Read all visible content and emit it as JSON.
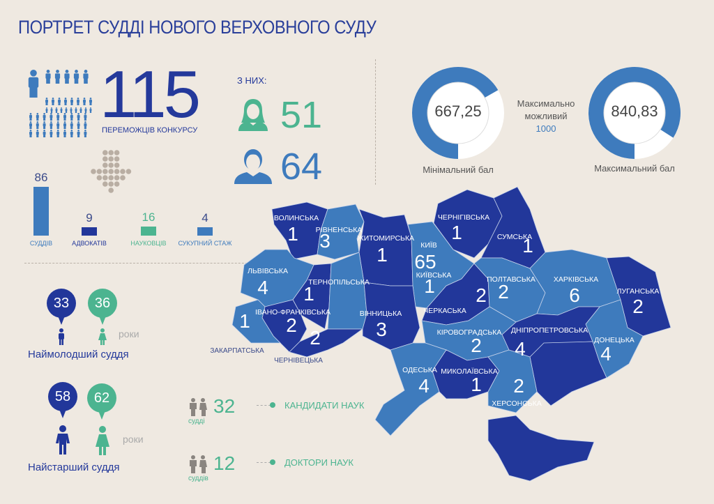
{
  "title": "ПОРТРЕТ СУДДІ НОВОГО ВЕРХОВНОГО СУДУ",
  "colors": {
    "dark_blue": "#22379a",
    "mid_blue": "#3e7bbd",
    "green": "#4cb490",
    "grey": "#b3aaa1",
    "background": "#efe9e1"
  },
  "winners": {
    "count": "115",
    "label": "ПЕРЕМОЖЦІВ КОНКУРСУ",
    "icon": "people-grid-icon"
  },
  "gender": {
    "heading": "З НИХ:",
    "women": {
      "count": "51",
      "icon": "woman-avatar-icon"
    },
    "men": {
      "count": "64",
      "icon": "man-avatar-icon"
    }
  },
  "background_bars": [
    {
      "value": 86,
      "value_label": "86",
      "label": "СУДДІВ",
      "color": "#3e7bbd"
    },
    {
      "value": 9,
      "value_label": "9",
      "label": "АДВОКАТІВ",
      "color": "#22379a"
    },
    {
      "value": 16,
      "value_label": "16",
      "label": "НАУКОВЦІВ",
      "color": "#4cb490"
    },
    {
      "value": 4,
      "value_label": "4",
      "label": "СУКУПНИЙ СТАЖ",
      "color": "#3e7bbd"
    }
  ],
  "scores": {
    "max_possible_label": "Максимально можливий",
    "max_possible_value": "1000",
    "min": {
      "value": 667.25,
      "text": "667,25",
      "label": "Мінімальний бал"
    },
    "max": {
      "value": 840.83,
      "text": "840,83",
      "label": "Максимальний бал"
    }
  },
  "youngest": {
    "male_age": "33",
    "female_age": "36",
    "unit": "роки",
    "label": "Наймолодший суддя"
  },
  "oldest": {
    "male_age": "58",
    "female_age": "62",
    "unit": "роки",
    "label": "Найстарший суддя"
  },
  "degrees": [
    {
      "count": "32",
      "unit": "судді",
      "label": "КАНДИДАТИ НАУК"
    },
    {
      "count": "12",
      "unit": "суддів",
      "label": "ДОКТОРИ НАУК"
    }
  ],
  "map_regions": [
    {
      "name": "ВОЛИНСЬКА",
      "count": "1",
      "shade": "dark"
    },
    {
      "name": "РІВНЕНСЬКА",
      "count": "3",
      "shade": "light"
    },
    {
      "name": "ЖИТОМИРСЬКА",
      "count": "1",
      "shade": "dark"
    },
    {
      "name": "КИЇВ",
      "count": "65",
      "shade": "light"
    },
    {
      "name": "КИЇВСЬКА",
      "count": "1",
      "shade": "light"
    },
    {
      "name": "ЧЕРНІГІВСЬКА",
      "count": "1",
      "shade": "dark"
    },
    {
      "name": "СУМСЬКА",
      "count": "1",
      "shade": "dark"
    },
    {
      "name": "ЛЬВІВСЬКА",
      "count": "4",
      "shade": "light"
    },
    {
      "name": "ТЕРНОПІЛЬСЬКА",
      "count": "1",
      "shade": "dark"
    },
    {
      "name": "",
      "count": "",
      "shade": "light"
    },
    {
      "name": "ІВАНО-ФРАНКІВСЬКА",
      "count": "2",
      "shade": "dark"
    },
    {
      "name": "ЧЕРНІВЕЦЬКА",
      "count": "2",
      "shade": "dark"
    },
    {
      "name": "ЗАКАРПАТСЬКА",
      "count": "1",
      "shade": "light"
    },
    {
      "name": "ВІННИЦЬКА",
      "count": "3",
      "shade": "dark"
    },
    {
      "name": "ЧЕРКАСЬКА",
      "count": "2",
      "shade": "dark"
    },
    {
      "name": "ПОЛТАВСЬКА",
      "count": "2",
      "shade": "light"
    },
    {
      "name": "ХАРКІВСЬКА",
      "count": "6",
      "shade": "light"
    },
    {
      "name": "ЛУГАНСЬКА",
      "count": "2",
      "shade": "dark"
    },
    {
      "name": "ДОНЕЦЬКА",
      "count": "4",
      "shade": "light"
    },
    {
      "name": "ДНІПРОПЕТРОВСЬКА",
      "count": "4",
      "shade": "dark"
    },
    {
      "name": "",
      "count": "",
      "shade": "dark"
    },
    {
      "name": "КІРОВОГРАДСЬКА",
      "count": "2",
      "shade": "light"
    },
    {
      "name": "ОДЕСЬКА",
      "count": "4",
      "shade": "light"
    },
    {
      "name": "МИКОЛАЇВСЬКА",
      "count": "1",
      "shade": "dark"
    },
    {
      "name": "ХЕРСОНСЬКА",
      "count": "2",
      "shade": "light"
    },
    {
      "name": "",
      "count": "",
      "shade": "dark"
    }
  ]
}
